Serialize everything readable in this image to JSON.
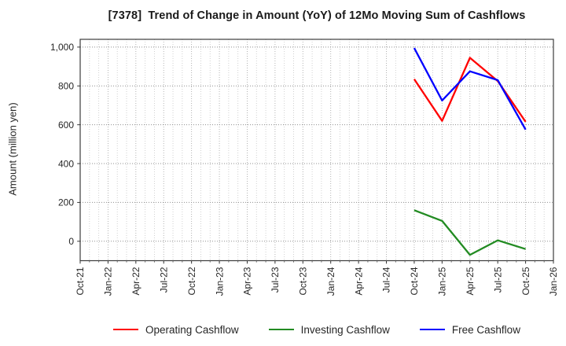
{
  "chart_data": {
    "type": "line",
    "title": "[7378]  Trend of Change in Amount (YoY) of 12Mo Moving Sum of Cashflows",
    "ylabel": "Amount (million yen)",
    "xlabel": "",
    "x_tick_labels": [
      "Oct-21",
      "Jan-22",
      "Apr-22",
      "Jul-22",
      "Oct-22",
      "Jan-23",
      "Apr-23",
      "Jul-23",
      "Oct-23",
      "Jan-24",
      "Apr-24",
      "Jul-24",
      "Oct-24",
      "Jan-25",
      "Apr-25",
      "Jul-25",
      "Oct-25",
      "Jan-26"
    ],
    "y_ticks": [
      0,
      200,
      400,
      600,
      800,
      1000
    ],
    "y_tick_labels": [
      "0",
      "200",
      "400",
      "600",
      "800",
      "1,000"
    ],
    "ylim": [
      -100,
      1040
    ],
    "grid": true,
    "grid_style": "dotted; vertical lines monthly, horizontal lines every 200",
    "legend_position": "bottom-center",
    "series": [
      {
        "name": "Operating Cashflow",
        "color": "#ff0000",
        "x": [
          "Oct-24",
          "Jan-25",
          "Apr-25",
          "Jul-25",
          "Oct-25"
        ],
        "values": [
          835,
          620,
          945,
          825,
          615
        ]
      },
      {
        "name": "Investing Cashflow",
        "color": "#228b22",
        "x": [
          "Oct-24",
          "Jan-25",
          "Apr-25",
          "Jul-25",
          "Oct-25"
        ],
        "values": [
          160,
          105,
          -70,
          5,
          -40
        ]
      },
      {
        "name": "Free Cashflow",
        "color": "#0000ff",
        "x": [
          "Oct-24",
          "Jan-25",
          "Apr-25",
          "Jul-25",
          "Oct-25"
        ],
        "values": [
          995,
          725,
          875,
          830,
          575
        ]
      }
    ],
    "colors": {
      "frame": "#3c3c3c",
      "grid_vertical_minor": "#cccccc",
      "grid_vertical_major": "#ababab",
      "grid_horizontal": "#8f8f8f",
      "tick": "#333333",
      "tick_label": "#262626",
      "title_text": "#1a1a1a"
    }
  }
}
